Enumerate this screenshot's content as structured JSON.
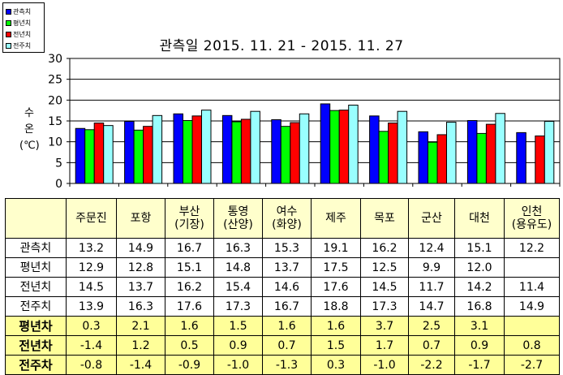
{
  "chart_data": {
    "type": "bar",
    "title": "관측일 2015. 11. 21 - 2015. 11. 27",
    "ylabel": [
      "수",
      "온",
      "(℃)"
    ],
    "ylim": [
      0,
      30
    ],
    "yticks": [
      "0",
      "5",
      "10",
      "15",
      "20",
      "25",
      "30"
    ],
    "categories": [
      "주문진",
      "포항",
      "부산\n(기장)",
      "통영\n(산양)",
      "여수\n(화양)",
      "제주",
      "목포",
      "군산",
      "대천",
      "인천\n(용유도)"
    ],
    "series": [
      {
        "name": "관측치",
        "color": "#0000ff",
        "values": [
          13.2,
          14.9,
          16.7,
          16.3,
          15.3,
          19.1,
          16.2,
          12.4,
          15.1,
          12.2
        ]
      },
      {
        "name": "평년치",
        "color": "#00ff00",
        "values": [
          12.9,
          12.8,
          15.1,
          14.8,
          13.7,
          17.5,
          12.5,
          9.9,
          12.0,
          null
        ]
      },
      {
        "name": "전년치",
        "color": "#ff0000",
        "values": [
          14.5,
          13.7,
          16.2,
          15.4,
          14.6,
          17.6,
          14.5,
          11.7,
          14.2,
          11.4
        ]
      },
      {
        "name": "전주치",
        "color": "#99ffff",
        "values": [
          13.9,
          16.3,
          17.6,
          17.3,
          16.7,
          18.8,
          17.3,
          14.7,
          16.8,
          14.9
        ]
      }
    ],
    "grid": true,
    "legend_position": "top-left"
  },
  "table": {
    "columns": [
      "",
      "주문진",
      "포항",
      "부산\n(기장)",
      "통영\n(산양)",
      "여수\n(화양)",
      "제주",
      "목포",
      "군산",
      "대천",
      "인천\n(용유도)"
    ],
    "rows": [
      {
        "label": "관측치",
        "kind": "plain",
        "cells": [
          "13.2",
          "14.9",
          "16.7",
          "16.3",
          "15.3",
          "19.1",
          "16.2",
          "12.4",
          "15.1",
          "12.2"
        ]
      },
      {
        "label": "평년치",
        "kind": "plain",
        "cells": [
          "12.9",
          "12.8",
          "15.1",
          "14.8",
          "13.7",
          "17.5",
          "12.5",
          "9.9",
          "12.0",
          ""
        ]
      },
      {
        "label": "전년치",
        "kind": "plain",
        "cells": [
          "14.5",
          "13.7",
          "16.2",
          "15.4",
          "14.6",
          "17.6",
          "14.5",
          "11.7",
          "14.2",
          "11.4"
        ]
      },
      {
        "label": "전주치",
        "kind": "plain",
        "cells": [
          "13.9",
          "16.3",
          "17.6",
          "17.3",
          "16.7",
          "18.8",
          "17.3",
          "14.7",
          "16.8",
          "14.9"
        ]
      },
      {
        "label": "평년차",
        "kind": "diff",
        "cells": [
          "0.3",
          "2.1",
          "1.6",
          "1.5",
          "1.6",
          "1.6",
          "3.7",
          "2.5",
          "3.1",
          ""
        ]
      },
      {
        "label": "전년차",
        "kind": "diff",
        "cells": [
          "-1.4",
          "1.2",
          "0.5",
          "0.9",
          "0.7",
          "1.5",
          "1.7",
          "0.7",
          "0.9",
          "0.8"
        ]
      },
      {
        "label": "전주차",
        "kind": "diff",
        "cells": [
          "-0.8",
          "-1.4",
          "-0.9",
          "-1.0",
          "-1.3",
          "0.3",
          "-1.0",
          "-2.2",
          "-1.7",
          "-2.7"
        ]
      }
    ]
  }
}
